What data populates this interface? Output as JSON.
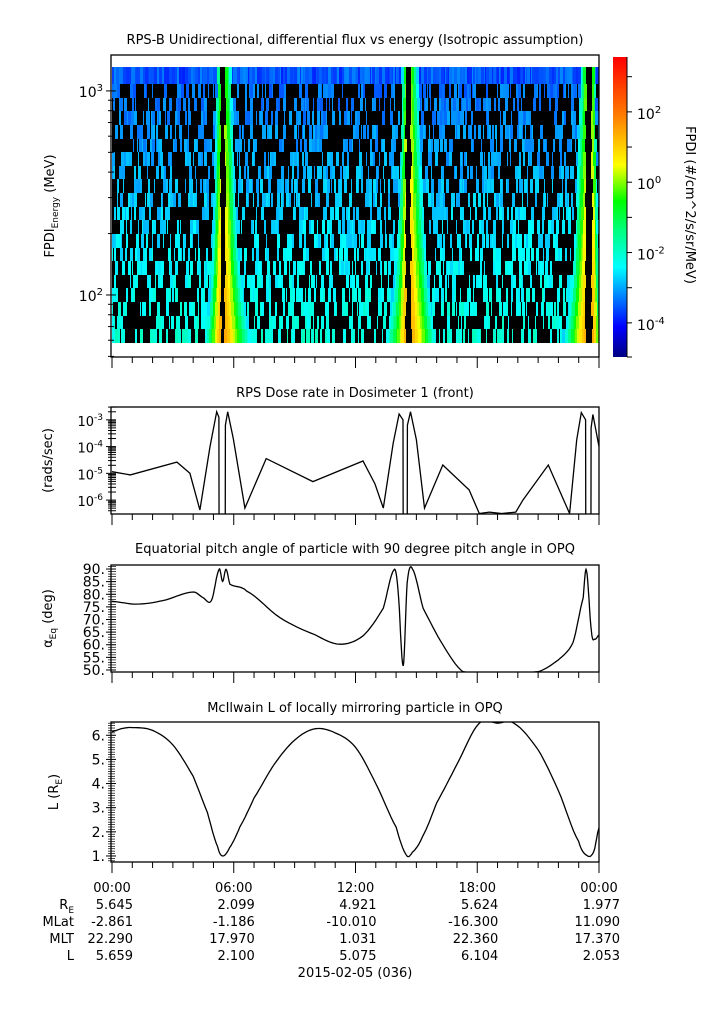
{
  "xaxis": {
    "range_hours": [
      0,
      24
    ],
    "tick_labels": [
      "00:00",
      "06:00",
      "12:00",
      "18:00",
      "00:00"
    ]
  },
  "colorbar": {
    "label": "FPDI (#/cm^2/s/sr/MeV)",
    "range_log10": [
      -4.97,
      3.56
    ],
    "ticks": [
      {
        "value": 2,
        "base": "10",
        "exp": "2"
      },
      {
        "value": 0,
        "base": "10",
        "exp": "0"
      },
      {
        "value": -2,
        "base": "10",
        "exp": "-2"
      },
      {
        "value": -4,
        "base": "10",
        "exp": "-4"
      }
    ],
    "colors": [
      "#000080",
      "#0000ff",
      "#0080ff",
      "#00ffff",
      "#00ff80",
      "#00ff00",
      "#ffff00",
      "#ff8000",
      "#ff0000"
    ]
  },
  "ephemeris": {
    "rows": [
      {
        "label": "R",
        "sub": "E",
        "values": [
          "5.645",
          "2.099",
          "4.921",
          "5.624",
          "1.977"
        ]
      },
      {
        "label": "MLat",
        "sub": "",
        "values": [
          "-2.861",
          "-1.186",
          "-10.010",
          "-16.300",
          "11.090"
        ]
      },
      {
        "label": "MLT",
        "sub": "",
        "values": [
          "22.290",
          "17.970",
          "1.031",
          "22.360",
          "17.370"
        ]
      },
      {
        "label": "L",
        "sub": "",
        "values": [
          "5.659",
          "2.100",
          "5.075",
          "6.104",
          "2.053"
        ]
      }
    ],
    "date": "2015-02-05 (036)"
  },
  "chart_data": [
    {
      "type": "heatmap",
      "title": "RPS-B  Unidirectional, differential flux vs energy (Isotropic assumption)",
      "ylabel": {
        "main": "FPDI",
        "sub": "Energy",
        "suffix": " (MeV)"
      },
      "yscale": "log",
      "ylim_log10": [
        1.696,
        3.176
      ],
      "energy_range_MeV": [
        58,
        1312
      ],
      "energy_bins": 20,
      "zlabel": "FPDI (#/cm^2/s/sr/MeV)",
      "zscale": "log",
      "belt_crossings_hours": [
        5.45,
        14.55,
        23.45
      ],
      "yticks": [
        {
          "value": 3,
          "base": "10",
          "exp": "3"
        },
        {
          "value": 2,
          "base": "10",
          "exp": "2"
        }
      ]
    },
    {
      "type": "line",
      "title": "RPS  Dose rate in Dosimeter 1 (front)",
      "ylabel": {
        "main": "(rads/sec)",
        "sub": "",
        "suffix": ""
      },
      "yscale": "log",
      "ylim_log10": [
        -6.52,
        -2.52
      ],
      "yticks": [
        {
          "value": -3,
          "base": "10",
          "exp": "-3"
        },
        {
          "value": -4,
          "base": "10",
          "exp": "-4"
        },
        {
          "value": -5,
          "base": "10",
          "exp": "-5"
        },
        {
          "value": -6,
          "base": "10",
          "exp": "-6"
        }
      ],
      "x_hours": [
        0,
        0.9,
        3.2,
        3.84,
        4.33,
        4.83,
        5.16,
        5.27,
        5.28,
        5.58,
        5.59,
        5.7,
        5.98,
        6.55,
        7.6,
        9.9,
        12.37,
        12.96,
        13.37,
        13.86,
        14.15,
        14.34,
        14.35,
        14.55,
        14.56,
        14.71,
        15.0,
        15.4,
        16.3,
        17.6,
        18.1,
        18.6,
        19.2,
        19.9,
        20.25,
        21.5,
        22.2,
        22.55,
        22.9,
        23.13,
        23.34,
        23.35,
        23.6,
        23.61,
        23.7,
        24.0
      ],
      "log10_values": [
        -4.94,
        -5.06,
        -4.58,
        -5.0,
        -6.37,
        -4.0,
        -2.7,
        -2.9,
        -8,
        -8,
        -3.2,
        -2.7,
        -3.7,
        -6.3,
        -4.45,
        -5.31,
        -4.54,
        -5.4,
        -6.3,
        -3.87,
        -2.78,
        -3.0,
        -8,
        -8,
        -3.2,
        -2.7,
        -3.75,
        -6.3,
        -4.69,
        -5.62,
        -6.5,
        -6.45,
        -6.5,
        -6.45,
        -6.0,
        -4.69,
        -5.9,
        -6.5,
        -3.75,
        -2.73,
        -3.0,
        -8,
        -8,
        -3.3,
        -2.8,
        -4.0
      ]
    },
    {
      "type": "line",
      "title": "Equatorial pitch angle of particle with 90 degree pitch angle in OPQ",
      "ylabel": {
        "main": "α",
        "sub": "Eq",
        "suffix": " (deg)"
      },
      "ylim": [
        49.2,
        91.6
      ],
      "yticks": [
        {
          "value": 90,
          "label": "90."
        },
        {
          "value": 85,
          "label": "85."
        },
        {
          "value": 80,
          "label": "80."
        },
        {
          "value": 75,
          "label": "75."
        },
        {
          "value": 70,
          "label": "70."
        },
        {
          "value": 65,
          "label": "65."
        },
        {
          "value": 60,
          "label": "60."
        },
        {
          "value": 55,
          "label": "55."
        },
        {
          "value": 50,
          "label": "50."
        }
      ],
      "x_hours": [
        0,
        1.2,
        2.5,
        4.0,
        4.5,
        4.9,
        5.28,
        5.45,
        5.62,
        5.81,
        6.63,
        8.28,
        10.0,
        11.23,
        12.38,
        13.37,
        13.9,
        14.1,
        14.35,
        14.55,
        14.8,
        15.33,
        16.3,
        17.3,
        21.0,
        22.0,
        22.72,
        23.22,
        23.38,
        23.63,
        23.8,
        24.0
      ],
      "values": [
        77.2,
        76.1,
        77.5,
        80.9,
        78.6,
        77.5,
        89.9,
        85.1,
        89.9,
        84.0,
        81.3,
        70.7,
        64.0,
        60.2,
        63.6,
        74.5,
        89.7,
        81.3,
        51.6,
        84.7,
        90.1,
        74.5,
        60.0,
        49.3,
        49.3,
        54.0,
        60.9,
        78.6,
        89.5,
        65.0,
        62.2,
        63.9
      ]
    },
    {
      "type": "line",
      "title": "McIlwain L of locally mirroring particle in OPQ",
      "ylabel": {
        "main": "L (R",
        "sub": "E",
        "suffix": ")"
      },
      "ylim": [
        0.75,
        6.55
      ],
      "yticks": [
        {
          "value": 6,
          "label": "6."
        },
        {
          "value": 5,
          "label": "5."
        },
        {
          "value": 4,
          "label": "4."
        },
        {
          "value": 3,
          "label": "3."
        },
        {
          "value": 2,
          "label": "2."
        },
        {
          "value": 1,
          "label": "1."
        }
      ],
      "x_hours": [
        0,
        0.5,
        1.0,
        2.0,
        3.0,
        4.0,
        4.7,
        5.2,
        5.45,
        5.8,
        6.3,
        7.0,
        8.0,
        9.0,
        10.0,
        11.0,
        12.0,
        13.0,
        14.0,
        14.5,
        14.8,
        15.3,
        16.0,
        17.0,
        18.1,
        19.0,
        19.8,
        21.0,
        22.0,
        23.0,
        23.45,
        23.75,
        24.0
      ],
      "values": [
        6.15,
        6.28,
        6.32,
        6.2,
        5.6,
        4.3,
        2.8,
        1.4,
        1.0,
        1.35,
        2.2,
        3.4,
        4.8,
        5.8,
        6.27,
        6.1,
        5.5,
        4.0,
        2.2,
        1.05,
        1.15,
        1.8,
        3.2,
        4.8,
        6.5,
        6.5,
        6.5,
        5.4,
        3.7,
        1.6,
        1.0,
        1.2,
        2.16
      ]
    }
  ]
}
